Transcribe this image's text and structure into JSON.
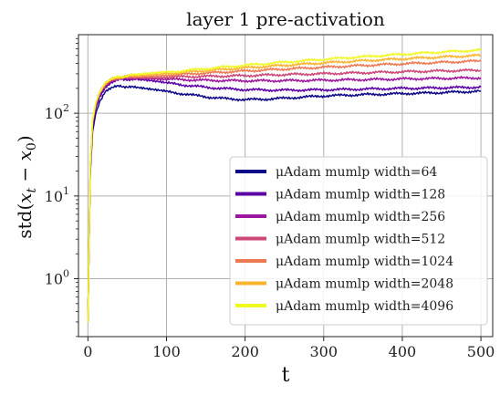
{
  "chart_data": {
    "type": "line",
    "title": "layer 1 pre-activation",
    "xlabel": "t",
    "ylabel": "std(x_t − x_0)",
    "ylabel_parts": {
      "pre": "std(",
      "x": "x",
      "t_sub": "t",
      "mid": " − ",
      "x2": "x",
      "zero_sub": "0",
      "post": ")"
    },
    "xlim": [
      -12,
      515
    ],
    "ylim_log10": [
      -0.7,
      2.95
    ],
    "yscale": "log",
    "x_ticks": [
      0,
      100,
      200,
      300,
      400,
      500
    ],
    "x_tick_labels": [
      "0",
      "100",
      "200",
      "300",
      "400",
      "500"
    ],
    "y_tick_labels": [
      {
        "base": "10",
        "exp": "0",
        "value": 1
      },
      {
        "base": "10",
        "exp": "1",
        "value": 10
      },
      {
        "base": "10",
        "exp": "2",
        "value": 100
      }
    ],
    "grid": true,
    "legend_position": "lower-right",
    "series": [
      {
        "name": "μAdam mumlp width=64",
        "color": "#0d0887",
        "x": [
          0,
          3,
          6,
          10,
          15,
          22,
          30,
          40,
          50,
          60,
          80,
          100,
          125,
          150,
          175,
          200,
          225,
          250,
          275,
          300,
          325,
          350,
          375,
          400,
          425,
          450,
          475,
          500
        ],
        "y": [
          0.3,
          18,
          60,
          100,
          140,
          180,
          205,
          212,
          210,
          204,
          192,
          182,
          170,
          158,
          150,
          146,
          148,
          152,
          157,
          162,
          165,
          168,
          170,
          173,
          175,
          178,
          181,
          185
        ]
      },
      {
        "name": "μAdam mumlp width=128",
        "color": "#5c01a6",
        "x": [
          0,
          3,
          6,
          10,
          15,
          22,
          30,
          40,
          50,
          60,
          80,
          100,
          125,
          150,
          175,
          200,
          225,
          250,
          275,
          300,
          325,
          350,
          375,
          400,
          425,
          450,
          475,
          500
        ],
        "y": [
          0.3,
          20,
          70,
          115,
          160,
          205,
          240,
          255,
          258,
          255,
          245,
          232,
          218,
          206,
          198,
          193,
          191,
          190,
          191,
          192,
          194,
          196,
          198,
          200,
          201,
          203,
          205,
          207
        ]
      },
      {
        "name": "μAdam mumlp width=256",
        "color": "#9c179e",
        "x": [
          0,
          3,
          6,
          10,
          15,
          22,
          30,
          40,
          50,
          60,
          80,
          100,
          125,
          150,
          175,
          200,
          225,
          250,
          275,
          300,
          325,
          350,
          375,
          400,
          425,
          450,
          475,
          500
        ],
        "y": [
          0.3,
          21,
          75,
          125,
          170,
          215,
          248,
          262,
          266,
          265,
          262,
          258,
          254,
          250,
          248,
          247,
          247,
          248,
          249,
          251,
          253,
          255,
          257,
          260,
          262,
          264,
          266,
          268
        ]
      },
      {
        "name": "μAdam mumlp width=512",
        "color": "#cc4778",
        "x": [
          0,
          3,
          6,
          10,
          15,
          22,
          30,
          40,
          50,
          60,
          80,
          100,
          125,
          150,
          175,
          200,
          225,
          250,
          275,
          300,
          325,
          350,
          375,
          400,
          425,
          450,
          475,
          500
        ],
        "y": [
          0.3,
          22,
          78,
          128,
          175,
          220,
          252,
          266,
          271,
          273,
          274,
          275,
          277,
          279,
          282,
          285,
          289,
          293,
          297,
          301,
          305,
          309,
          313,
          317,
          321,
          325,
          328,
          332
        ]
      },
      {
        "name": "μAdam mumlp width=1024",
        "color": "#ed7953",
        "x": [
          0,
          3,
          6,
          10,
          15,
          22,
          30,
          40,
          50,
          60,
          80,
          100,
          125,
          150,
          175,
          200,
          225,
          250,
          275,
          300,
          325,
          350,
          375,
          400,
          425,
          450,
          475,
          500
        ],
        "y": [
          0.3,
          22,
          80,
          130,
          178,
          224,
          256,
          270,
          276,
          279,
          284,
          290,
          298,
          306,
          315,
          324,
          333,
          342,
          351,
          360,
          369,
          378,
          387,
          396,
          404,
          412,
          420,
          428
        ]
      },
      {
        "name": "μAdam mumlp width=2048",
        "color": "#fbb32f",
        "x": [
          0,
          3,
          6,
          10,
          15,
          22,
          30,
          40,
          50,
          60,
          80,
          100,
          125,
          150,
          175,
          200,
          225,
          250,
          275,
          300,
          325,
          350,
          375,
          400,
          425,
          450,
          475,
          500
        ],
        "y": [
          0.3,
          23,
          82,
          132,
          180,
          226,
          258,
          272,
          280,
          285,
          293,
          302,
          315,
          328,
          341,
          354,
          367,
          380,
          393,
          406,
          419,
          431,
          443,
          455,
          467,
          478,
          489,
          500
        ]
      },
      {
        "name": "μAdam mumlp width=4096",
        "color": "#f0f921",
        "x": [
          0,
          3,
          6,
          10,
          15,
          22,
          30,
          40,
          50,
          60,
          80,
          100,
          125,
          150,
          175,
          200,
          225,
          250,
          275,
          300,
          325,
          350,
          375,
          400,
          425,
          450,
          475,
          500
        ],
        "y": [
          0.3,
          23,
          84,
          134,
          182,
          228,
          260,
          275,
          284,
          290,
          301,
          312,
          329,
          346,
          363,
          380,
          397,
          414,
          431,
          448,
          465,
          482,
          499,
          516,
          533,
          549,
          565,
          580
        ]
      }
    ]
  }
}
